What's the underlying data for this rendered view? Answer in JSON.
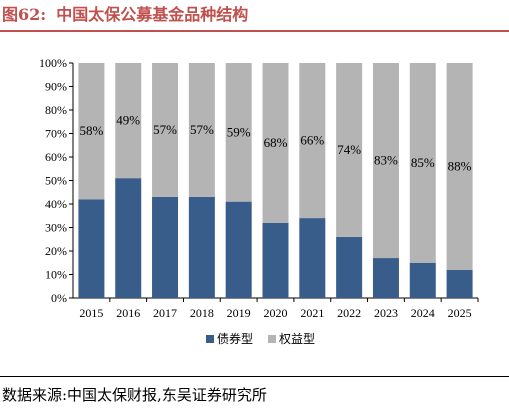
{
  "figure": {
    "label": "图62:",
    "title": "中国太保公募基金品种结构"
  },
  "source": "数据来源:中国太保财报,东吴证券研究所",
  "colors": {
    "title": "#c0504d",
    "bond": "#385d8a",
    "equity": "#b4b4b4"
  },
  "chart_data": {
    "type": "bar",
    "stacked": true,
    "percent": true,
    "categories": [
      "2015",
      "2016",
      "2017",
      "2018",
      "2019",
      "2020",
      "2021",
      "2022",
      "2023",
      "2024",
      "2025"
    ],
    "series": [
      {
        "name": "债券型",
        "values": [
          42,
          51,
          43,
          43,
          41,
          32,
          34,
          26,
          17,
          15,
          12
        ]
      },
      {
        "name": "权益型",
        "values": [
          58,
          49,
          57,
          57,
          59,
          68,
          66,
          74,
          83,
          85,
          88
        ]
      }
    ],
    "data_labels": [
      "58%",
      "49%",
      "57%",
      "57%",
      "59%",
      "68%",
      "66%",
      "74%",
      "83%",
      "85%",
      "88%"
    ],
    "y_ticks": [
      "0%",
      "10%",
      "20%",
      "30%",
      "40%",
      "50%",
      "60%",
      "70%",
      "80%",
      "90%",
      "100%"
    ],
    "ylim": [
      0,
      100
    ],
    "legend_position": "bottom",
    "grid": false
  }
}
